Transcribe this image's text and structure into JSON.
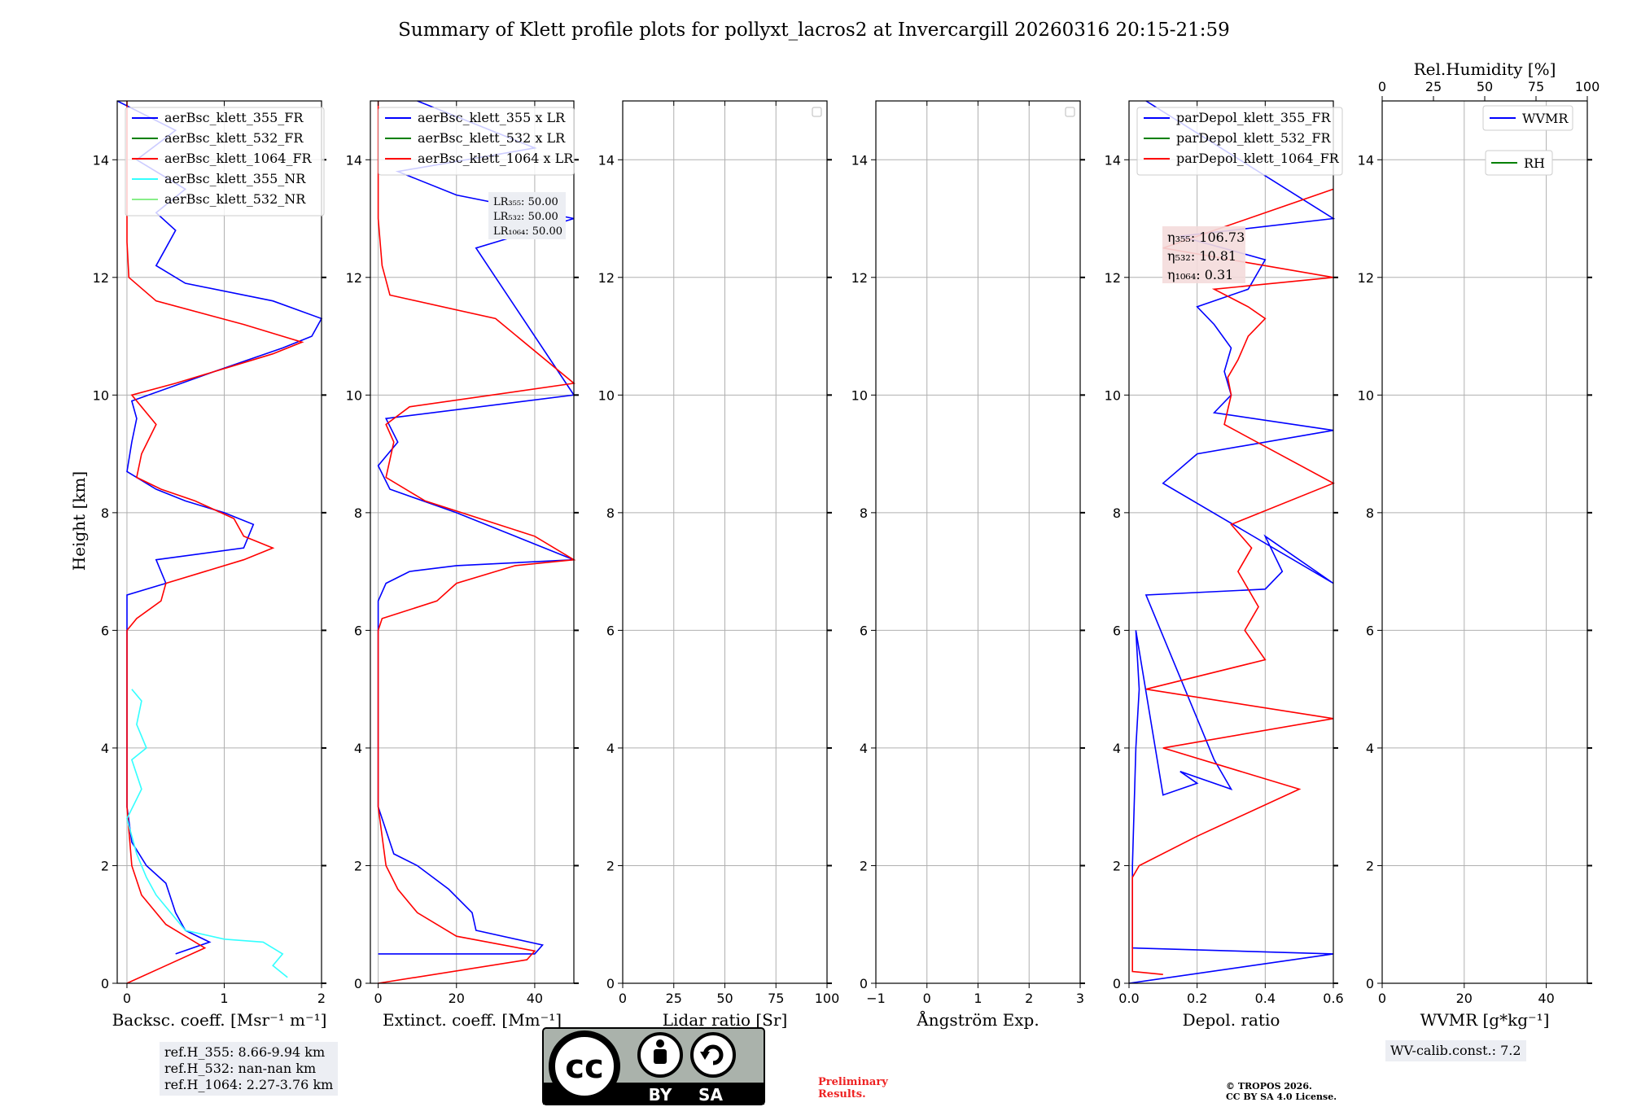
{
  "title": "Summary of Klett profile plots for pollyxt_lacros2 at Invercargill 20260316 20:15-21:59",
  "ylabel": "Height [km]",
  "colors": {
    "b355": "#0000ff",
    "g532": "#008000",
    "r1064": "#ff0000",
    "c355nr": "#33ffff",
    "lg532nr": "#88ee88",
    "grid": "#b0b0b0"
  },
  "chart_data": [
    {
      "type": "line",
      "panel": "backscatter",
      "xlabel": "Backsc. coeff. [Msr⁻¹ m⁻¹]",
      "xlim": [
        -0.1,
        2.0
      ],
      "xticks": [
        "0",
        "1",
        "2"
      ],
      "xtick_values": [
        0,
        1,
        2
      ],
      "ylim": [
        0,
        15
      ],
      "yticks": [
        "0",
        "2",
        "4",
        "6",
        "8",
        "10",
        "12",
        "14"
      ],
      "legend": [
        "aerBsc_klett_355_FR",
        "aerBsc_klett_532_FR",
        "aerBsc_klett_1064_FR",
        "aerBsc_klett_355_NR",
        "aerBsc_klett_532_NR"
      ],
      "series": [
        {
          "name": "aerBsc_klett_355_FR",
          "color_key": "b355",
          "x": [
            0.5,
            0.85,
            0.6,
            0.5,
            0.4,
            0.2,
            0.05,
            0.0,
            0.0,
            0.0,
            0.0,
            0.0,
            0.0,
            0.4,
            0.3,
            1.2,
            1.3,
            1.0,
            0.6,
            0.3,
            0.0,
            0.05,
            0.1,
            0.05,
            0.9,
            1.6,
            1.9,
            2.0,
            1.5,
            0.6,
            0.3,
            0.4,
            0.5,
            0.3,
            0.6,
            0.1,
            0.5,
            -0.1
          ],
          "y": [
            0.5,
            0.7,
            0.9,
            1.2,
            1.7,
            2.0,
            2.4,
            3.0,
            4.0,
            5.0,
            6.0,
            6.4,
            6.6,
            6.8,
            7.2,
            7.4,
            7.8,
            8.0,
            8.2,
            8.4,
            8.7,
            9.2,
            9.6,
            9.9,
            10.4,
            10.8,
            11.0,
            11.3,
            11.6,
            11.9,
            12.2,
            12.5,
            12.8,
            13.1,
            13.5,
            14.0,
            14.5,
            15.0
          ]
        },
        {
          "name": "aerBsc_klett_1064_FR",
          "color_key": "r1064",
          "x": [
            0.0,
            0.4,
            0.8,
            0.4,
            0.15,
            0.05,
            0.0,
            0.0,
            0.0,
            0.0,
            0.1,
            0.35,
            0.4,
            1.2,
            1.5,
            1.2,
            1.1,
            0.7,
            0.35,
            0.1,
            0.15,
            0.3,
            0.05,
            0.5,
            1.1,
            1.5,
            1.8,
            1.6,
            1.2,
            0.3,
            0.02,
            0.0,
            0.0,
            0.0,
            0.0,
            0.0
          ],
          "y": [
            0.0,
            0.3,
            0.6,
            1.0,
            1.5,
            2.0,
            3.0,
            4.0,
            5.0,
            6.0,
            6.2,
            6.5,
            6.8,
            7.2,
            7.4,
            7.6,
            7.9,
            8.2,
            8.4,
            8.6,
            9.0,
            9.5,
            10.0,
            10.2,
            10.5,
            10.7,
            10.9,
            11.0,
            11.2,
            11.6,
            12.0,
            12.6,
            13.0,
            14.0,
            14.8,
            15.0
          ]
        },
        {
          "name": "aerBsc_klett_355_NR",
          "color_key": "c355nr",
          "x": [
            1.65,
            1.5,
            1.6,
            1.4,
            1.0,
            0.6,
            0.45,
            0.3,
            0.2,
            0.1,
            0.0,
            0.15,
            0.05,
            0.2,
            0.1,
            0.15,
            0.05
          ],
          "y": [
            0.1,
            0.3,
            0.5,
            0.7,
            0.75,
            0.9,
            1.2,
            1.5,
            1.8,
            2.2,
            2.8,
            3.3,
            3.8,
            4.0,
            4.4,
            4.8,
            5.0
          ]
        }
      ],
      "ref_heights": [
        "ref.H_355: 8.66-9.94 km",
        "ref.H_532: nan-nan km",
        "ref.H_1064: 2.27-3.76 km"
      ]
    },
    {
      "type": "line",
      "panel": "extinction",
      "xlabel": "Extinct. coeff. [Mm⁻¹]",
      "xlim": [
        -2,
        50
      ],
      "xticks": [
        "0",
        "20",
        "40"
      ],
      "xtick_values": [
        0,
        20,
        40
      ],
      "ylim": [
        0,
        15
      ],
      "legend": [
        "aerBsc_klett_355 x LR",
        "aerBsc_klett_532 x LR",
        "aerBsc_klett_1064 x LR"
      ],
      "lidar_ratios": [
        "LR₃₅₅: 50.00",
        "LR₅₃₂: 50.00",
        "LR₁₀₆₄: 50.00"
      ],
      "series": [
        {
          "name": "aerBsc_klett_355 x LR",
          "color_key": "b355",
          "x": [
            0,
            40,
            42,
            25,
            24,
            18,
            10,
            4,
            2,
            0,
            0,
            0,
            0,
            2,
            5,
            8,
            20,
            50,
            35,
            20,
            3,
            0,
            5,
            2,
            50,
            30,
            25,
            50,
            20,
            5,
            40,
            10
          ],
          "y": [
            0.5,
            0.5,
            0.65,
            0.9,
            1.2,
            1.6,
            2.0,
            2.2,
            2.6,
            3.0,
            4.0,
            5.0,
            6.5,
            6.8,
            6.9,
            7.0,
            7.1,
            7.2,
            7.6,
            8.0,
            8.4,
            8.8,
            9.2,
            9.6,
            10.0,
            12.0,
            12.5,
            13.0,
            13.4,
            13.8,
            14.2,
            15.0
          ]
        },
        {
          "name": "aerBsc_klett_1064 x LR",
          "color_key": "r1064",
          "x": [
            0,
            38,
            40,
            20,
            10,
            5,
            2,
            0,
            0,
            0,
            1,
            15,
            20,
            35,
            50,
            40,
            12,
            2,
            4,
            2,
            8,
            50,
            30,
            3,
            1,
            0,
            0,
            0
          ],
          "y": [
            0.0,
            0.4,
            0.55,
            0.8,
            1.2,
            1.6,
            2.0,
            3.0,
            5.0,
            6.0,
            6.2,
            6.5,
            6.8,
            7.1,
            7.2,
            7.6,
            8.2,
            8.6,
            9.2,
            9.5,
            9.8,
            10.2,
            11.3,
            11.7,
            12.2,
            13.0,
            14.0,
            15.0
          ]
        }
      ]
    },
    {
      "type": "line",
      "panel": "lidar_ratio",
      "xlabel": "Lidar ratio [Sr]",
      "xlim": [
        0,
        100
      ],
      "xticks": [
        "0",
        "25",
        "50",
        "75",
        "100"
      ],
      "xtick_values": [
        0,
        25,
        50,
        75,
        100
      ],
      "ylim": [
        0,
        15
      ],
      "series": []
    },
    {
      "type": "line",
      "panel": "angstrom",
      "xlabel": "Ångström Exp.",
      "xlim": [
        -1,
        3
      ],
      "xticks": [
        "−1",
        "0",
        "1",
        "2",
        "3"
      ],
      "xtick_values": [
        -1,
        0,
        1,
        2,
        3
      ],
      "ylim": [
        0,
        15
      ],
      "series": []
    },
    {
      "type": "line",
      "panel": "depolarization",
      "xlabel": "Depol. ratio",
      "xlim": [
        0,
        0.6
      ],
      "xticks": [
        "0.0",
        "0.2",
        "0.4",
        "0.6"
      ],
      "xtick_values": [
        0,
        0.2,
        0.4,
        0.6
      ],
      "ylim": [
        0,
        15
      ],
      "legend": [
        "parDepol_klett_355_FR",
        "parDepol_klett_532_FR",
        "parDepol_klett_1064_FR"
      ],
      "eta": [
        "η₃₅₅: 106.73",
        "η₅₃₂: 10.81",
        "η₁₀₆₄: 0.31"
      ],
      "series": [
        {
          "name": "parDepol_klett_355_FR",
          "color_key": "b355",
          "x": [
            0.0,
            0.6,
            0.01,
            0.01,
            0.02,
            0.03,
            0.02,
            0.1,
            0.2,
            0.15,
            0.3,
            0.25,
            0.05,
            0.4,
            0.45,
            0.4,
            0.6,
            0.1,
            0.2,
            0.6,
            0.25,
            0.3,
            0.28,
            0.3,
            0.25,
            0.2,
            0.35,
            0.4,
            0.15,
            0.6,
            0.05
          ],
          "y": [
            0.0,
            0.5,
            0.6,
            2.0,
            4.0,
            5.0,
            6.0,
            3.2,
            3.4,
            3.6,
            3.3,
            3.8,
            6.6,
            6.7,
            7.0,
            7.6,
            6.8,
            8.5,
            9.0,
            9.4,
            9.7,
            10.0,
            10.4,
            10.8,
            11.2,
            11.5,
            11.8,
            12.3,
            12.7,
            13.0,
            15.0
          ]
        },
        {
          "name": "parDepol_klett_1064_FR",
          "color_key": "r1064",
          "x": [
            0.1,
            0.01,
            0.01,
            0.03,
            0.2,
            0.5,
            0.1,
            0.6,
            0.05,
            0.4,
            0.34,
            0.38,
            0.32,
            0.36,
            0.3,
            0.6,
            0.28,
            0.3,
            0.29,
            0.32,
            0.35,
            0.4,
            0.35,
            0.25,
            0.6,
            0.1,
            0.6
          ],
          "y": [
            0.15,
            0.2,
            1.8,
            2.0,
            2.5,
            3.3,
            4.0,
            4.5,
            5.0,
            5.5,
            6.0,
            6.4,
            7.0,
            7.4,
            7.8,
            8.5,
            9.5,
            10.0,
            10.3,
            10.6,
            11.0,
            11.3,
            11.5,
            11.8,
            12.0,
            12.5,
            13.5
          ]
        }
      ]
    },
    {
      "type": "line",
      "panel": "water_vapor",
      "xlabel": "WVMR [g*kg⁻¹]",
      "xlim": [
        0,
        50
      ],
      "xticks": [
        "0",
        "20",
        "40"
      ],
      "xtick_values": [
        0,
        20,
        40
      ],
      "x2label": "Rel.Humidity [%]",
      "x2ticks": [
        "0",
        "25",
        "50",
        "75",
        "100"
      ],
      "ylim": [
        0,
        15
      ],
      "legend": [
        "WVMR",
        "RH"
      ],
      "wv_calib": "WV-calib.const.: 7.2",
      "series": []
    }
  ],
  "license": {
    "cc": "cc",
    "by": "BY",
    "sa": "SA"
  },
  "preliminary": [
    "Preliminary",
    "Results."
  ],
  "copyright": [
    "© TROPOS 2026.",
    "CC BY SA 4.0 License."
  ]
}
